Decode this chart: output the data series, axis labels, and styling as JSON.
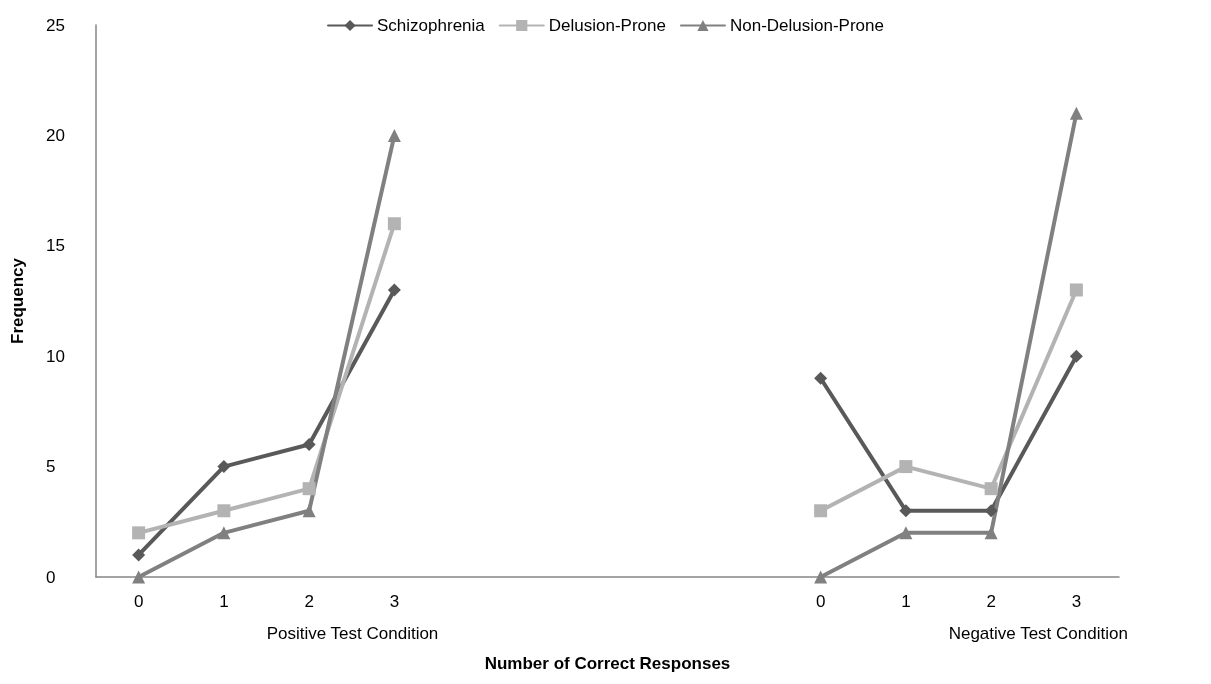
{
  "chart_data": {
    "type": "line",
    "xlabel": "Number of Correct Responses",
    "ylabel": "Frequency",
    "categories": [
      "0",
      "1",
      "2",
      "3",
      null,
      null,
      null,
      null,
      "0",
      "1",
      "2",
      "3"
    ],
    "series": [
      {
        "name": "Schizophrenia",
        "color": "#595959",
        "marker": "diamond",
        "values": [
          1,
          5,
          6,
          13,
          null,
          null,
          null,
          null,
          9,
          3,
          3,
          10
        ]
      },
      {
        "name": "Delusion-Prone",
        "color": "#b3b3b3",
        "marker": "square",
        "values": [
          2,
          3,
          4,
          16,
          null,
          null,
          null,
          null,
          3,
          5,
          4,
          13
        ]
      },
      {
        "name": "Non-Delusion-Prone",
        "color": "#808080",
        "marker": "triangle",
        "values": [
          0,
          2,
          3,
          20,
          null,
          null,
          null,
          null,
          0,
          2,
          2,
          21
        ]
      }
    ],
    "annotations": [
      "Positive Test Condition",
      "Negative Test Condition"
    ],
    "ylim": [
      0,
      25
    ],
    "yticks": [
      0,
      5,
      10,
      15,
      20,
      25
    ],
    "grid": false,
    "legend": "top"
  }
}
